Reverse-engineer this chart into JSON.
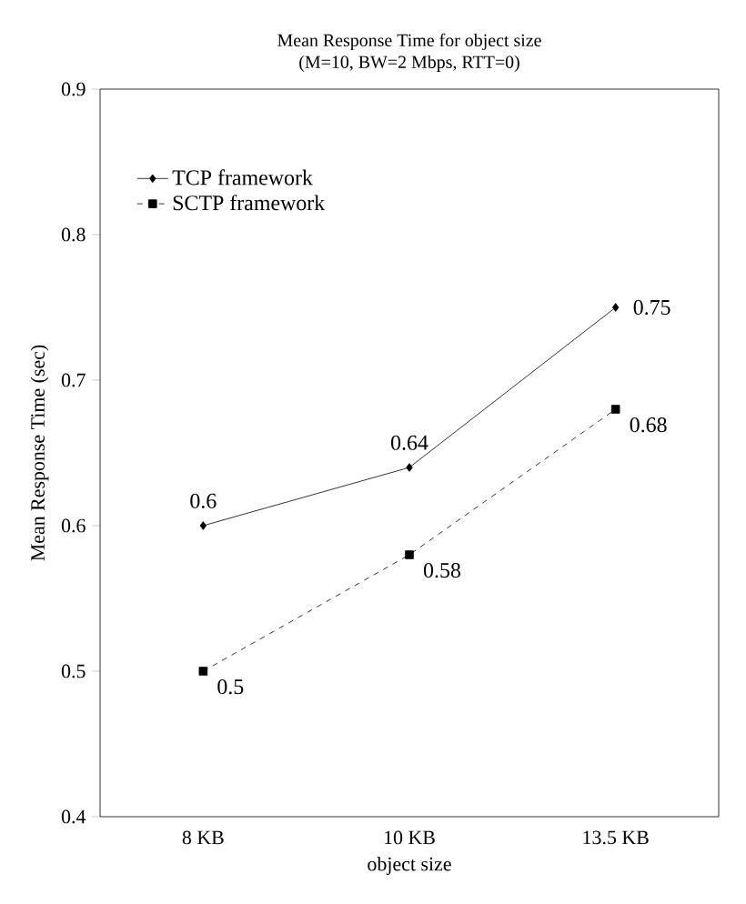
{
  "chart_data": {
    "type": "line",
    "title": "Mean Response Time for object size",
    "subtitle": "(M=10, BW=2 Mbps, RTT=0)",
    "xlabel": "object size",
    "ylabel": "Mean Response Time (sec)",
    "categories": [
      "8 KB",
      "10 KB",
      "13.5 KB"
    ],
    "series": [
      {
        "name": "TCP   framework",
        "color": "#000000",
        "values": [
          0.6,
          0.64,
          0.75
        ],
        "marker": "diamond",
        "line_style": "solid"
      },
      {
        "name": "SCTP framework",
        "color": "#000000",
        "values": [
          0.5,
          0.58,
          0.68
        ],
        "marker": "square",
        "line_style": "dashed"
      }
    ],
    "ylim": [
      0.4,
      0.9
    ],
    "yticks": [
      0.4,
      0.5,
      0.6,
      0.7,
      0.8,
      0.9
    ],
    "data_labels": true,
    "legend": "top left",
    "grid": false
  }
}
